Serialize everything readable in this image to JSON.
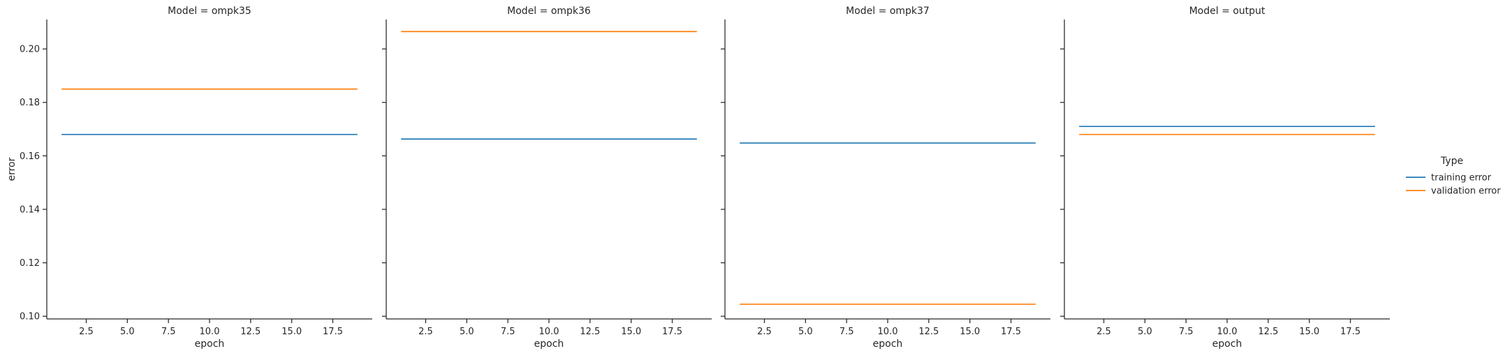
{
  "chart_data": {
    "type": "line",
    "layout": "facet-grid",
    "facet_variable": "Model",
    "xlabel": "epoch",
    "ylabel": "error",
    "xlim": [
      0.1,
      19.9
    ],
    "ylim": [
      0.099,
      0.211
    ],
    "xticks": [
      2.5,
      5.0,
      7.5,
      10.0,
      12.5,
      15.0,
      17.5
    ],
    "xtick_labels": [
      "2.5",
      "5.0",
      "7.5",
      "10.0",
      "12.5",
      "15.0",
      "17.5"
    ],
    "yticks": [
      0.1,
      0.12,
      0.14,
      0.16,
      0.18,
      0.2
    ],
    "ytick_labels": [
      "0.10",
      "0.12",
      "0.14",
      "0.16",
      "0.18",
      "0.20"
    ],
    "grid": false,
    "sharey": true,
    "legend": {
      "title": "Type",
      "placement": "right",
      "entries": [
        {
          "label": "training error",
          "color": "#1f77b4"
        },
        {
          "label": "validation error",
          "color": "#ff7f0e"
        }
      ]
    },
    "panels": [
      {
        "title": "Model = ompk35",
        "series": [
          {
            "name": "training error",
            "color": "#1f77b4",
            "x": [
              1,
              19
            ],
            "y": [
              0.168,
              0.168
            ]
          },
          {
            "name": "validation error",
            "color": "#ff7f0e",
            "x": [
              1,
              19
            ],
            "y": [
              0.185,
              0.185
            ]
          }
        ]
      },
      {
        "title": "Model = ompk36",
        "series": [
          {
            "name": "training error",
            "color": "#1f77b4",
            "x": [
              1,
              19
            ],
            "y": [
              0.1663,
              0.1663
            ]
          },
          {
            "name": "validation error",
            "color": "#ff7f0e",
            "x": [
              1,
              19
            ],
            "y": [
              0.2065,
              0.2065
            ]
          }
        ]
      },
      {
        "title": "Model = ompk37",
        "series": [
          {
            "name": "training error",
            "color": "#1f77b4",
            "x": [
              1,
              19
            ],
            "y": [
              0.1648,
              0.1648
            ]
          },
          {
            "name": "validation error",
            "color": "#ff7f0e",
            "x": [
              1,
              19
            ],
            "y": [
              0.1045,
              0.1045
            ]
          }
        ]
      },
      {
        "title": "Model = output",
        "series": [
          {
            "name": "training error",
            "color": "#1f77b4",
            "x": [
              1,
              19
            ],
            "y": [
              0.171,
              0.171
            ]
          },
          {
            "name": "validation error",
            "color": "#ff7f0e",
            "x": [
              1,
              19
            ],
            "y": [
              0.168,
              0.168
            ]
          }
        ]
      }
    ]
  }
}
